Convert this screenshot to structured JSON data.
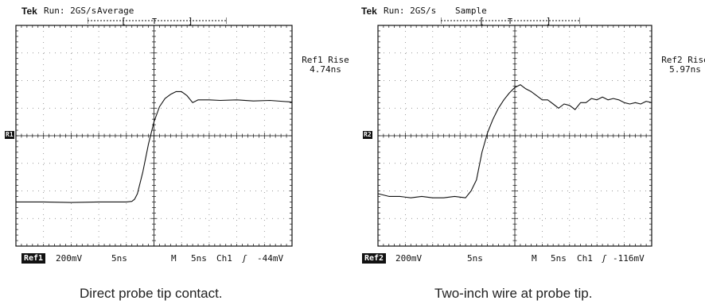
{
  "scopes": [
    {
      "brand": "Tek",
      "run_status": "Run: 2GS/s",
      "acq_mode": "Average",
      "trigger_marker": "T",
      "channel_marker": "R1",
      "measurement": {
        "label": "Ref1 Rise",
        "value": "4.74ns"
      },
      "footer": {
        "ref": "Ref1",
        "volts_per_div": "200mV",
        "time_per_div": "5ns",
        "m_label": "M",
        "m_time": "5ns",
        "trigger_ch": "Ch1",
        "trigger_slope": "ʃ",
        "trigger_level": "-44mV"
      },
      "caption": "Direct probe tip contact."
    },
    {
      "brand": "Tek",
      "run_status": "Run: 2GS/s",
      "acq_mode": "Sample",
      "trigger_marker": "T",
      "channel_marker": "R2",
      "measurement": {
        "label": "Ref2 Rise",
        "value": "5.97ns"
      },
      "footer": {
        "ref": "Ref2",
        "volts_per_div": "200mV",
        "time_per_div": "5ns",
        "m_label": "M",
        "m_time": "5ns",
        "trigger_ch": "Ch1",
        "trigger_slope": "ʃ",
        "trigger_level": "-116mV"
      },
      "caption": "Two-inch wire at probe tip."
    }
  ],
  "chart_data": [
    {
      "type": "line",
      "x_unit": "divisions",
      "y_unit": "divisions",
      "xlim": [
        0,
        10
      ],
      "ylim": [
        -4,
        4
      ],
      "grid": true,
      "series": [
        {
          "x": [
            0,
            1,
            2,
            3,
            4,
            4.2,
            4.3,
            4.4,
            4.6,
            4.8,
            5.0,
            5.2,
            5.4,
            5.6,
            5.8,
            6.0,
            6.2,
            6.4,
            6.6,
            6.8,
            7.0,
            7.4,
            8.0,
            8.6,
            9.2,
            10
          ],
          "y": [
            -2.4,
            -2.4,
            -2.42,
            -2.4,
            -2.4,
            -2.38,
            -2.3,
            -2.1,
            -1.3,
            -0.3,
            0.5,
            1.05,
            1.35,
            1.5,
            1.6,
            1.6,
            1.45,
            1.2,
            1.3,
            1.3,
            1.3,
            1.28,
            1.3,
            1.26,
            1.28,
            1.22
          ]
        }
      ]
    },
    {
      "type": "line",
      "x_unit": "divisions",
      "y_unit": "divisions",
      "xlim": [
        0,
        10
      ],
      "ylim": [
        -4,
        4
      ],
      "grid": true,
      "series": [
        {
          "x": [
            0,
            0.4,
            0.8,
            1.2,
            1.6,
            2.0,
            2.4,
            2.8,
            3.2,
            3.4,
            3.6,
            3.8,
            4.0,
            4.2,
            4.4,
            4.6,
            4.8,
            5.0,
            5.2,
            5.4,
            5.6,
            5.8,
            6.0,
            6.2,
            6.4,
            6.6,
            6.8,
            7.0,
            7.2,
            7.4,
            7.6,
            7.8,
            8.0,
            8.2,
            8.4,
            8.6,
            8.8,
            9.0,
            9.2,
            9.4,
            9.6,
            9.8,
            10
          ],
          "y": [
            -2.1,
            -2.2,
            -2.2,
            -2.25,
            -2.2,
            -2.25,
            -2.25,
            -2.2,
            -2.25,
            -2.0,
            -1.6,
            -0.6,
            0.1,
            0.6,
            1.0,
            1.3,
            1.55,
            1.75,
            1.85,
            1.7,
            1.6,
            1.45,
            1.3,
            1.3,
            1.15,
            1.0,
            1.15,
            1.1,
            0.95,
            1.2,
            1.2,
            1.35,
            1.3,
            1.4,
            1.3,
            1.35,
            1.3,
            1.2,
            1.15,
            1.2,
            1.15,
            1.25,
            1.2
          ]
        }
      ]
    }
  ]
}
